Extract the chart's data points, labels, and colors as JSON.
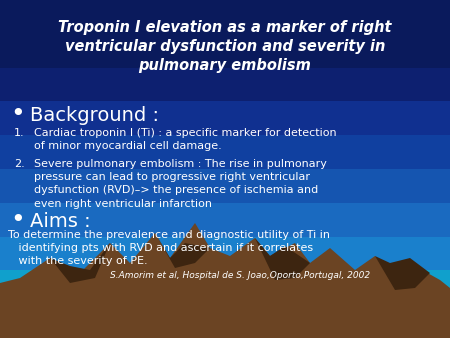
{
  "title": "Troponin I elevation as a marker of right\nventricular dysfunction and severity in\npulmonary embolism",
  "text_color": "#ffffff",
  "bullet_header1": "Background :",
  "item1_num": "1.",
  "item1": "Cardiac troponin I (Ti) : a specific marker for detection\nof minor myocardial cell damage.",
  "item2_num": "2.",
  "item2": "Severe pulmonary embolism : The rise in pulmonary\npressure can lead to progressive right ventricular\ndysfunction (RVD)–> the presence of ischemia and\neven right ventricular infarction",
  "bullet_header2": "Aims :",
  "aims_text": "To determine the prevalence and diagnostic utility of Ti in\n   identifying pts with RVD and ascertain if it correlates\n   with the severity of PE.",
  "citation": "S.Amorim et al, Hospital de S. Joao,Oporto,Portugal, 2002",
  "grad_colors": [
    "#0a1a5c",
    "#0a1a5c",
    "#0d2070",
    "#103090",
    "#1040a0",
    "#1555b0",
    "#1a6ac0",
    "#1a80cc",
    "#10a0cc",
    "#08c0c8"
  ],
  "mountain_color": "#6b4423",
  "mountain_dark": "#3d2510",
  "teal_color": "#00d0c0"
}
